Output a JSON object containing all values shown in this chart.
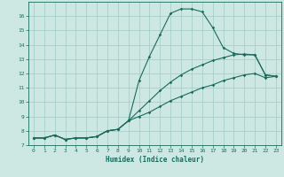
{
  "xlabel": "Humidex (Indice chaleur)",
  "x": [
    0,
    1,
    2,
    3,
    4,
    5,
    6,
    7,
    8,
    9,
    10,
    11,
    12,
    13,
    14,
    15,
    16,
    17,
    18,
    19,
    20,
    21,
    22,
    23
  ],
  "line1": [
    7.5,
    7.5,
    7.7,
    7.4,
    7.5,
    7.5,
    7.6,
    8.0,
    8.1,
    8.7,
    11.5,
    13.2,
    14.7,
    16.2,
    16.5,
    16.5,
    16.3,
    15.2,
    13.8,
    13.4,
    13.3,
    13.3,
    11.9,
    11.8
  ],
  "line2": [
    7.5,
    7.5,
    7.7,
    7.4,
    7.5,
    7.5,
    7.6,
    8.0,
    8.1,
    8.7,
    9.4,
    10.1,
    10.8,
    11.4,
    11.9,
    12.3,
    12.6,
    12.9,
    13.1,
    13.3,
    13.35,
    13.3,
    11.9,
    11.8
  ],
  "line3": [
    7.5,
    7.5,
    7.7,
    7.4,
    7.5,
    7.5,
    7.6,
    8.0,
    8.1,
    8.7,
    9.0,
    9.3,
    9.7,
    10.1,
    10.4,
    10.7,
    11.0,
    11.2,
    11.5,
    11.7,
    11.9,
    12.0,
    11.7,
    11.8
  ],
  "line_color": "#1a6b5e",
  "bg_color": "#cde8e3",
  "grid_color": "#a8cec9",
  "ylim": [
    7,
    17
  ],
  "yticks": [
    7,
    8,
    9,
    10,
    11,
    12,
    13,
    14,
    15,
    16
  ],
  "xlim": [
    -0.5,
    23.5
  ],
  "xticks": [
    0,
    1,
    2,
    3,
    4,
    5,
    6,
    7,
    8,
    9,
    10,
    11,
    12,
    13,
    14,
    15,
    16,
    17,
    18,
    19,
    20,
    21,
    22,
    23
  ]
}
